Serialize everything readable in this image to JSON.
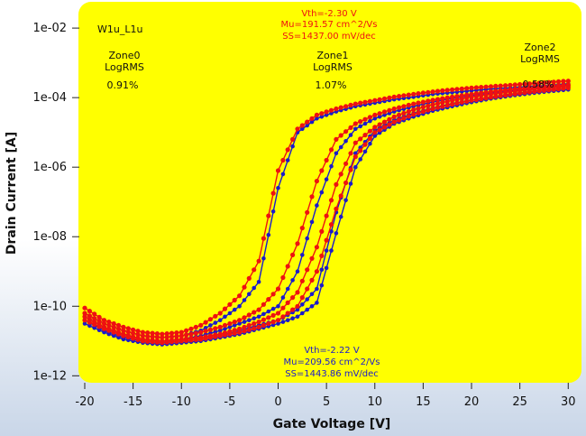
{
  "chart_data": {
    "type": "line",
    "title": "",
    "xlabel": "Gate Voltage [V]",
    "ylabel": "Drain Current [A]",
    "xlim": [
      -20,
      31
    ],
    "ylim_log10": [
      -12.2,
      -1.4
    ],
    "y_scale": "log",
    "grid": false,
    "plot_background": "#ffff00",
    "x_ticks": [
      -20,
      -15,
      -10,
      -5,
      0,
      5,
      10,
      15,
      20,
      25,
      30
    ],
    "x_tick_labels": [
      "-20",
      "-15",
      "-10",
      "-5",
      "0",
      "5",
      "10",
      "15",
      "20",
      "25",
      "30"
    ],
    "y_ticks_log10": [
      -12,
      -10,
      -8,
      -6,
      -4,
      -2
    ],
    "y_tick_labels": [
      "1e-12",
      "1e-10",
      "1e-08",
      "1e-06",
      "1e-04",
      "1e-02"
    ],
    "device_label": "W1u_L1u",
    "zones": [
      {
        "name": "Zone0",
        "metric": "LogRMS",
        "value": "0.91%"
      },
      {
        "name": "Zone1",
        "metric": "LogRMS",
        "value": "1.07%"
      },
      {
        "name": "Zone2",
        "metric": "LogRMS",
        "value": "0.58%"
      }
    ],
    "params_top": [
      "Vth=-2.30 V",
      "Mu=191.57 cm^2/Vs",
      "SS=1437.00 mV/dec"
    ],
    "params_bottom": [
      "Vth=-2.22 V",
      "Mu=209.56 cm^2/Vs",
      "SS=1443.86 mV/dec"
    ],
    "colors": {
      "measured": "#1a1acc",
      "fit": "#ee1111",
      "top_params": "#ee1111",
      "bottom_params": "#1a1acc"
    },
    "curve_x": [
      -20,
      -18,
      -16,
      -14,
      -12,
      -10,
      -8,
      -6,
      -4,
      -2,
      0,
      2,
      4,
      6,
      8,
      10,
      12,
      14,
      16,
      18,
      20,
      22,
      24,
      26,
      28,
      30
    ],
    "series": [
      {
        "marker": "measured",
        "log10_y": [
          -10.2,
          -10.5,
          -10.7,
          -10.85,
          -10.9,
          -10.85,
          -10.7,
          -10.4,
          -10.0,
          -9.3,
          -6.6,
          -5.0,
          -4.6,
          -4.4,
          -4.25,
          -4.15,
          -4.05,
          -3.98,
          -3.9,
          -3.85,
          -3.8,
          -3.75,
          -3.72,
          -3.68,
          -3.65,
          -3.6
        ]
      },
      {
        "marker": "measured",
        "log10_y": [
          -10.3,
          -10.6,
          -10.8,
          -10.95,
          -11.0,
          -10.95,
          -10.85,
          -10.7,
          -10.5,
          -10.3,
          -10.0,
          -9.0,
          -7.1,
          -5.6,
          -4.9,
          -4.6,
          -4.4,
          -4.25,
          -4.12,
          -4.02,
          -3.94,
          -3.87,
          -3.8,
          -3.75,
          -3.7,
          -3.65
        ]
      },
      {
        "marker": "measured",
        "log10_y": [
          -10.4,
          -10.7,
          -10.9,
          -11.0,
          -11.05,
          -11.0,
          -10.95,
          -10.85,
          -10.7,
          -10.55,
          -10.4,
          -10.1,
          -9.5,
          -7.3,
          -5.6,
          -4.95,
          -4.65,
          -4.45,
          -4.3,
          -4.17,
          -4.07,
          -3.98,
          -3.9,
          -3.83,
          -3.77,
          -3.72
        ]
      },
      {
        "marker": "measured",
        "log10_y": [
          -10.5,
          -10.75,
          -10.95,
          -11.05,
          -11.1,
          -11.05,
          -11.0,
          -10.9,
          -10.8,
          -10.65,
          -10.5,
          -10.3,
          -9.9,
          -7.9,
          -6.0,
          -5.1,
          -4.75,
          -4.55,
          -4.38,
          -4.25,
          -4.13,
          -4.03,
          -3.95,
          -3.88,
          -3.82,
          -3.77
        ]
      },
      {
        "marker": "fit",
        "log10_y": [
          -10.05,
          -10.4,
          -10.6,
          -10.75,
          -10.8,
          -10.75,
          -10.55,
          -10.2,
          -9.7,
          -8.7,
          -6.1,
          -4.9,
          -4.5,
          -4.32,
          -4.18,
          -4.08,
          -3.98,
          -3.9,
          -3.83,
          -3.77,
          -3.72,
          -3.68,
          -3.64,
          -3.6,
          -3.56,
          -3.52
        ]
      },
      {
        "marker": "fit",
        "log10_y": [
          -10.2,
          -10.5,
          -10.7,
          -10.85,
          -10.9,
          -10.85,
          -10.75,
          -10.6,
          -10.4,
          -10.1,
          -9.5,
          -8.2,
          -6.4,
          -5.2,
          -4.75,
          -4.5,
          -4.32,
          -4.18,
          -4.07,
          -3.98,
          -3.9,
          -3.83,
          -3.77,
          -3.72,
          -3.68,
          -3.63
        ]
      },
      {
        "marker": "fit",
        "log10_y": [
          -10.3,
          -10.6,
          -10.8,
          -10.95,
          -11.0,
          -10.95,
          -10.9,
          -10.8,
          -10.65,
          -10.45,
          -10.2,
          -9.6,
          -8.3,
          -6.5,
          -5.3,
          -4.85,
          -4.55,
          -4.35,
          -4.2,
          -4.08,
          -3.98,
          -3.9,
          -3.83,
          -3.77,
          -3.72,
          -3.67
        ]
      },
      {
        "marker": "fit",
        "log10_y": [
          -10.4,
          -10.65,
          -10.85,
          -11.0,
          -11.05,
          -11.0,
          -10.95,
          -10.85,
          -10.75,
          -10.6,
          -10.4,
          -10.0,
          -9.0,
          -7.2,
          -5.7,
          -5.0,
          -4.7,
          -4.48,
          -4.32,
          -4.19,
          -4.08,
          -3.99,
          -3.91,
          -3.84,
          -3.78,
          -3.72
        ]
      }
    ]
  }
}
